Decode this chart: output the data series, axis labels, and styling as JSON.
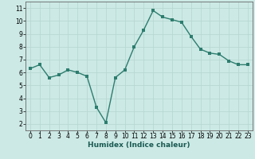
{
  "x": [
    0,
    1,
    2,
    3,
    4,
    5,
    6,
    7,
    8,
    9,
    10,
    11,
    12,
    13,
    14,
    15,
    16,
    17,
    18,
    19,
    20,
    21,
    22,
    23
  ],
  "y": [
    6.3,
    6.6,
    5.6,
    5.8,
    6.2,
    6.0,
    5.7,
    3.3,
    2.1,
    5.6,
    6.2,
    8.0,
    9.3,
    10.8,
    10.3,
    10.1,
    9.9,
    8.8,
    7.8,
    7.5,
    7.4,
    6.9,
    6.6,
    6.6
  ],
  "line_color": "#2d7d6e",
  "marker_color": "#2d7d6e",
  "bg_color": "#cce9e5",
  "grid_color": "#b8d8d4",
  "xlabel": "Humidex (Indice chaleur)",
  "ylim": [
    1.5,
    11.5
  ],
  "xlim": [
    -0.5,
    23.5
  ],
  "yticks": [
    2,
    3,
    4,
    5,
    6,
    7,
    8,
    9,
    10,
    11
  ],
  "xticks": [
    0,
    1,
    2,
    3,
    4,
    5,
    6,
    7,
    8,
    9,
    10,
    11,
    12,
    13,
    14,
    15,
    16,
    17,
    18,
    19,
    20,
    21,
    22,
    23
  ],
  "xlabel_fontsize": 6.5,
  "tick_fontsize": 5.5,
  "line_width": 1.0,
  "marker_size": 2.2
}
